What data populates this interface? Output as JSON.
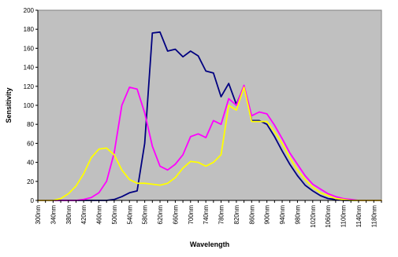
{
  "chart_data": {
    "type": "line",
    "title": "",
    "xlabel": "Wavelength",
    "ylabel": "Sensitivity",
    "ylim": [
      0,
      200
    ],
    "y_ticks": [
      0,
      20,
      40,
      60,
      80,
      100,
      120,
      140,
      160,
      180,
      200
    ],
    "x_tick_labels": [
      "300nm",
      "340nm",
      "380nm",
      "420nm",
      "460nm",
      "500nm",
      "540nm",
      "580nm",
      "620nm",
      "660nm",
      "700nm",
      "740nm",
      "780nm",
      "820nm",
      "860nm",
      "900nm",
      "940nm",
      "980nm",
      "1020nm",
      "1060nm",
      "1100nm",
      "1140nm",
      "1180nm"
    ],
    "x": [
      300,
      320,
      340,
      360,
      380,
      400,
      420,
      440,
      460,
      480,
      500,
      520,
      540,
      560,
      580,
      600,
      620,
      640,
      660,
      680,
      700,
      720,
      740,
      760,
      780,
      800,
      820,
      840,
      860,
      880,
      900,
      920,
      940,
      960,
      980,
      1000,
      1020,
      1040,
      1060,
      1080,
      1100,
      1120,
      1140,
      1160,
      1180,
      1200
    ],
    "plot_background": "#c0c0c0",
    "grid": false,
    "legend": "none",
    "series": [
      {
        "color": "#000080",
        "values": [
          0,
          0,
          0,
          0,
          0,
          0,
          0,
          0,
          0,
          0,
          1,
          4,
          8,
          10,
          60,
          176,
          177,
          157,
          159,
          151,
          157,
          152,
          136,
          134,
          109,
          123,
          101,
          120,
          84,
          84,
          80,
          67,
          52,
          38,
          26,
          16,
          10,
          5,
          2,
          1,
          0,
          0,
          0,
          0,
          0,
          0
        ]
      },
      {
        "color": "#ff00ff",
        "values": [
          0,
          0,
          0,
          0,
          0,
          0,
          1,
          3,
          8,
          20,
          50,
          100,
          119,
          117,
          92,
          57,
          36,
          32,
          38,
          48,
          67,
          70,
          66,
          84,
          80,
          107,
          100,
          121,
          89,
          93,
          91,
          79,
          65,
          50,
          38,
          26,
          17,
          12,
          7,
          4,
          2,
          1,
          0,
          0,
          0,
          0
        ]
      },
      {
        "color": "#ffff00",
        "values": [
          0,
          0,
          0,
          2,
          7,
          15,
          28,
          45,
          54,
          55,
          48,
          32,
          22,
          18,
          18,
          17,
          16,
          18,
          24,
          34,
          41,
          40,
          36,
          40,
          48,
          100,
          95,
          119,
          83,
          83,
          83,
          72,
          60,
          45,
          32,
          22,
          14,
          8,
          5,
          2,
          1,
          0,
          0,
          0,
          0,
          0
        ]
      }
    ]
  }
}
